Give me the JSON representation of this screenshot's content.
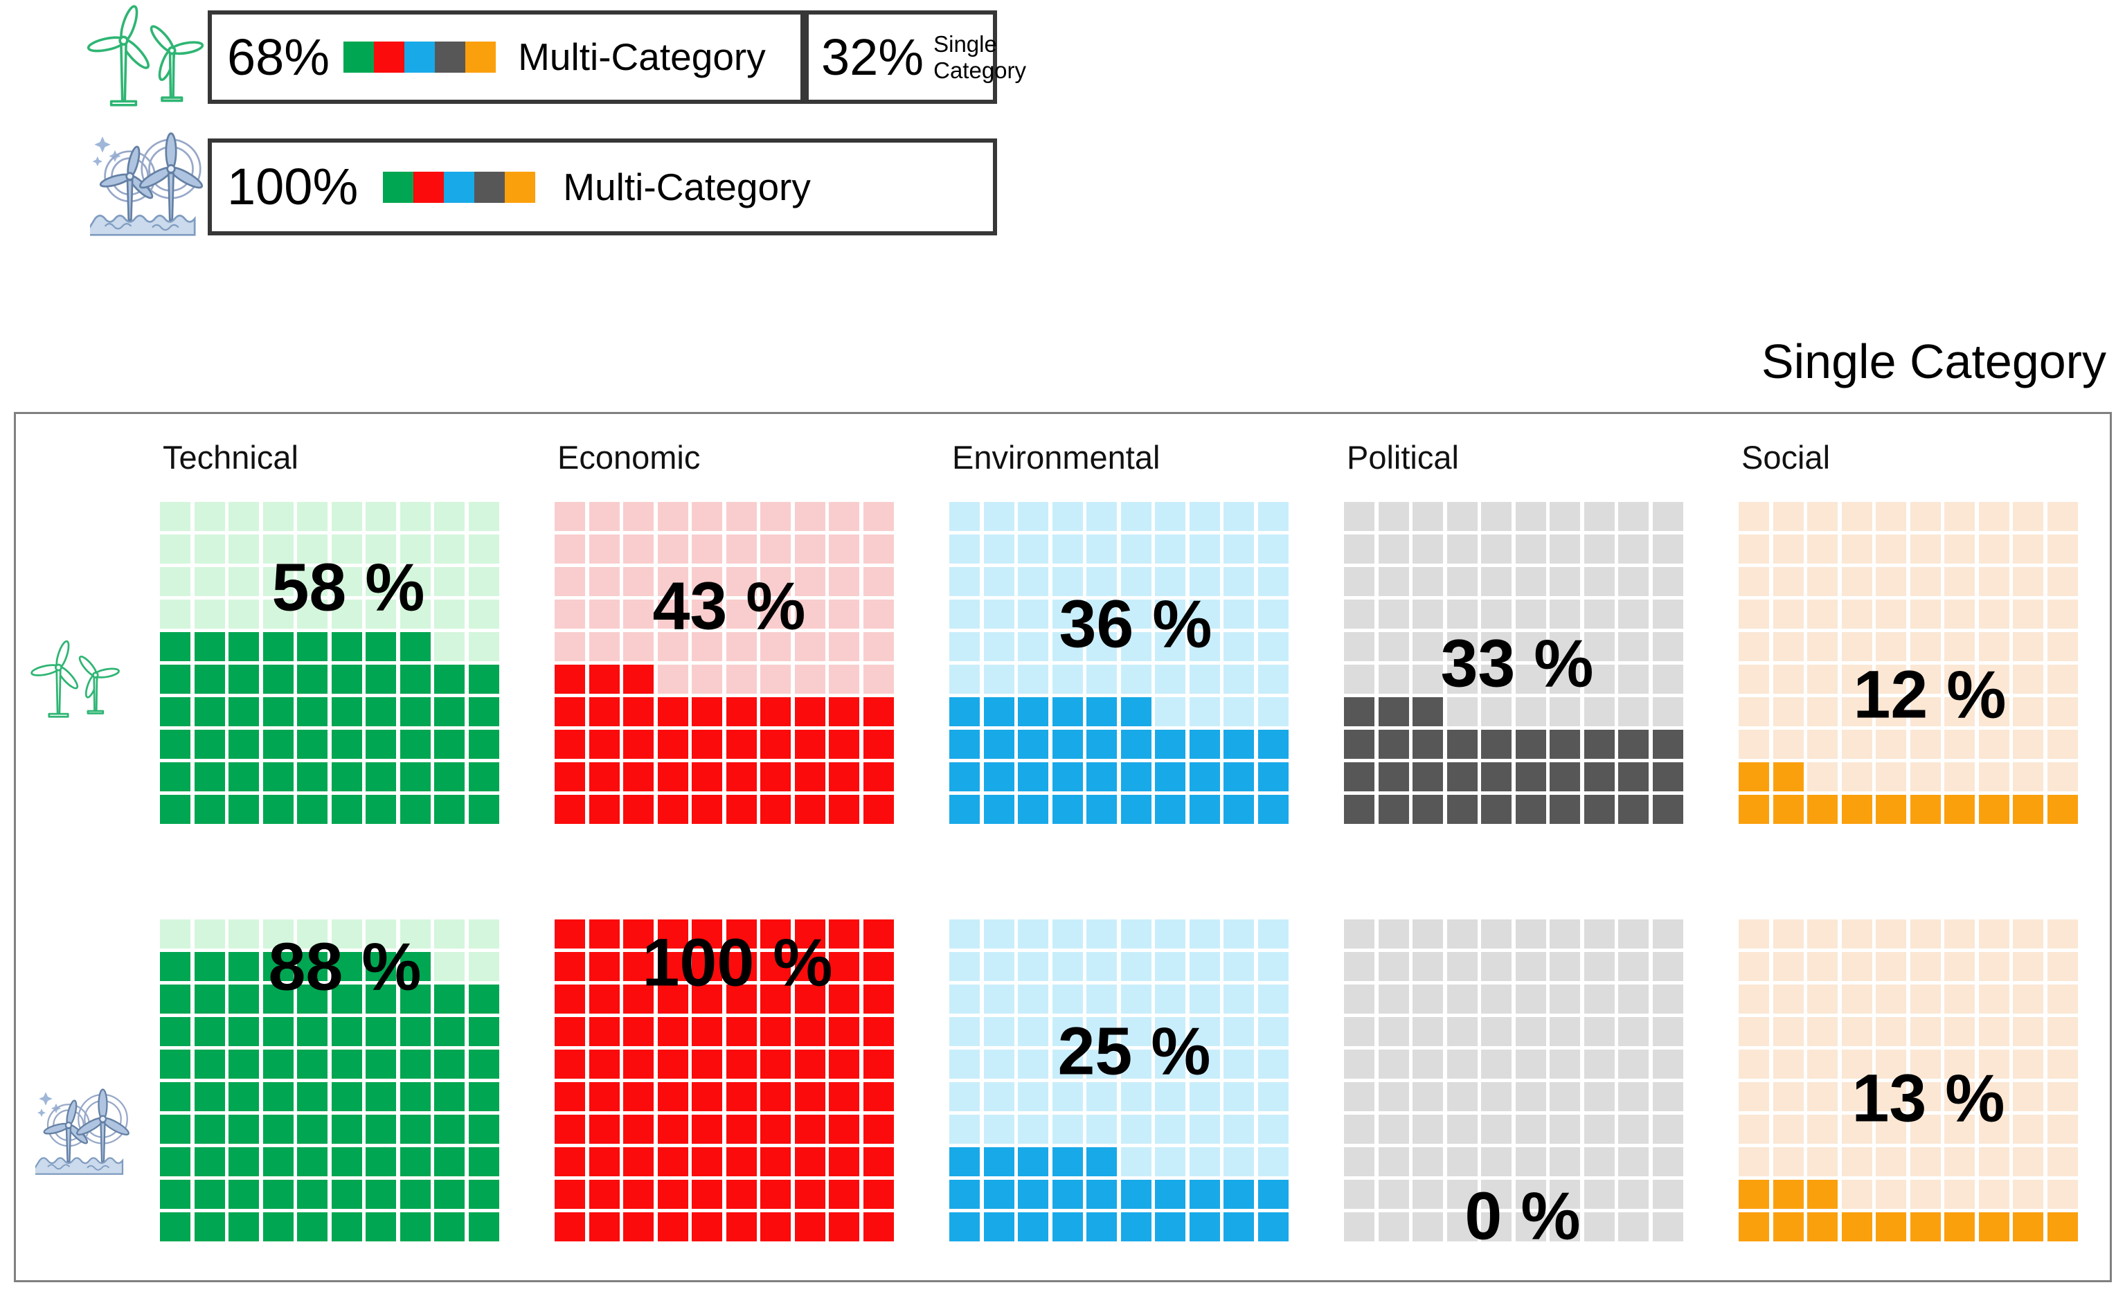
{
  "title": "Single Category",
  "legend": {
    "rows": [
      {
        "icon": "onshore-wind-turbines-icon",
        "percent": "68%",
        "swatches": [
          "#00A651",
          "#FB0B0B",
          "#18A9E8",
          "#575757",
          "#FBA00D"
        ],
        "label": "Multi-Category",
        "secondary": {
          "percent": "32%",
          "line1": "Single",
          "line2": "Category"
        }
      },
      {
        "icon": "offshore-wind-turbines-icon",
        "percent": "100%",
        "swatches": [
          "#00A651",
          "#FB0B0B",
          "#18A9E8",
          "#575757",
          "#FBA00D"
        ],
        "label": "Multi-Category"
      }
    ]
  },
  "chart_data": {
    "type": "waffle",
    "title": "Single Category",
    "unit": "%",
    "grid": {
      "rows": 10,
      "cols": 10,
      "fill_direction": "bottom-up, remainder row left-aligned"
    },
    "categories": [
      "Technical",
      "Economic",
      "Environmental",
      "Political",
      "Social"
    ],
    "series": [
      {
        "name": "onshore-wind",
        "icon": "onshore-wind-turbines-icon",
        "values": [
          58,
          43,
          36,
          33,
          12
        ]
      },
      {
        "name": "offshore-wind",
        "icon": "offshore-wind-turbines-icon",
        "values": [
          88,
          100,
          25,
          0,
          13
        ]
      }
    ],
    "colors": [
      {
        "category": "Technical",
        "fill": "#00A651",
        "light": "#D4F6DC"
      },
      {
        "category": "Economic",
        "fill": "#FB0B0B",
        "light": "#F9CDCD"
      },
      {
        "category": "Environmental",
        "fill": "#18A9E8",
        "light": "#C9EEFB"
      },
      {
        "category": "Political",
        "fill": "#575757",
        "light": "#DCDCDC"
      },
      {
        "category": "Social",
        "fill": "#FBA00D",
        "light": "#FBE7D4"
      }
    ],
    "label_centers": [
      [
        [
          272,
          123
        ],
        [
          252,
          150
        ],
        [
          269,
          176
        ],
        [
          250,
          233
        ],
        [
          276,
          278
        ]
      ],
      [
        [
          267,
          68
        ],
        [
          264,
          62
        ],
        [
          267,
          190
        ],
        [
          258,
          428
        ],
        [
          274,
          258
        ]
      ]
    ],
    "layout_hints": {
      "waffle_lefts": [
        208,
        778,
        1348,
        1918,
        2488
      ],
      "waffle_tops": [
        127,
        730
      ],
      "legend_position": "top-left",
      "title_position": "top-right"
    }
  }
}
